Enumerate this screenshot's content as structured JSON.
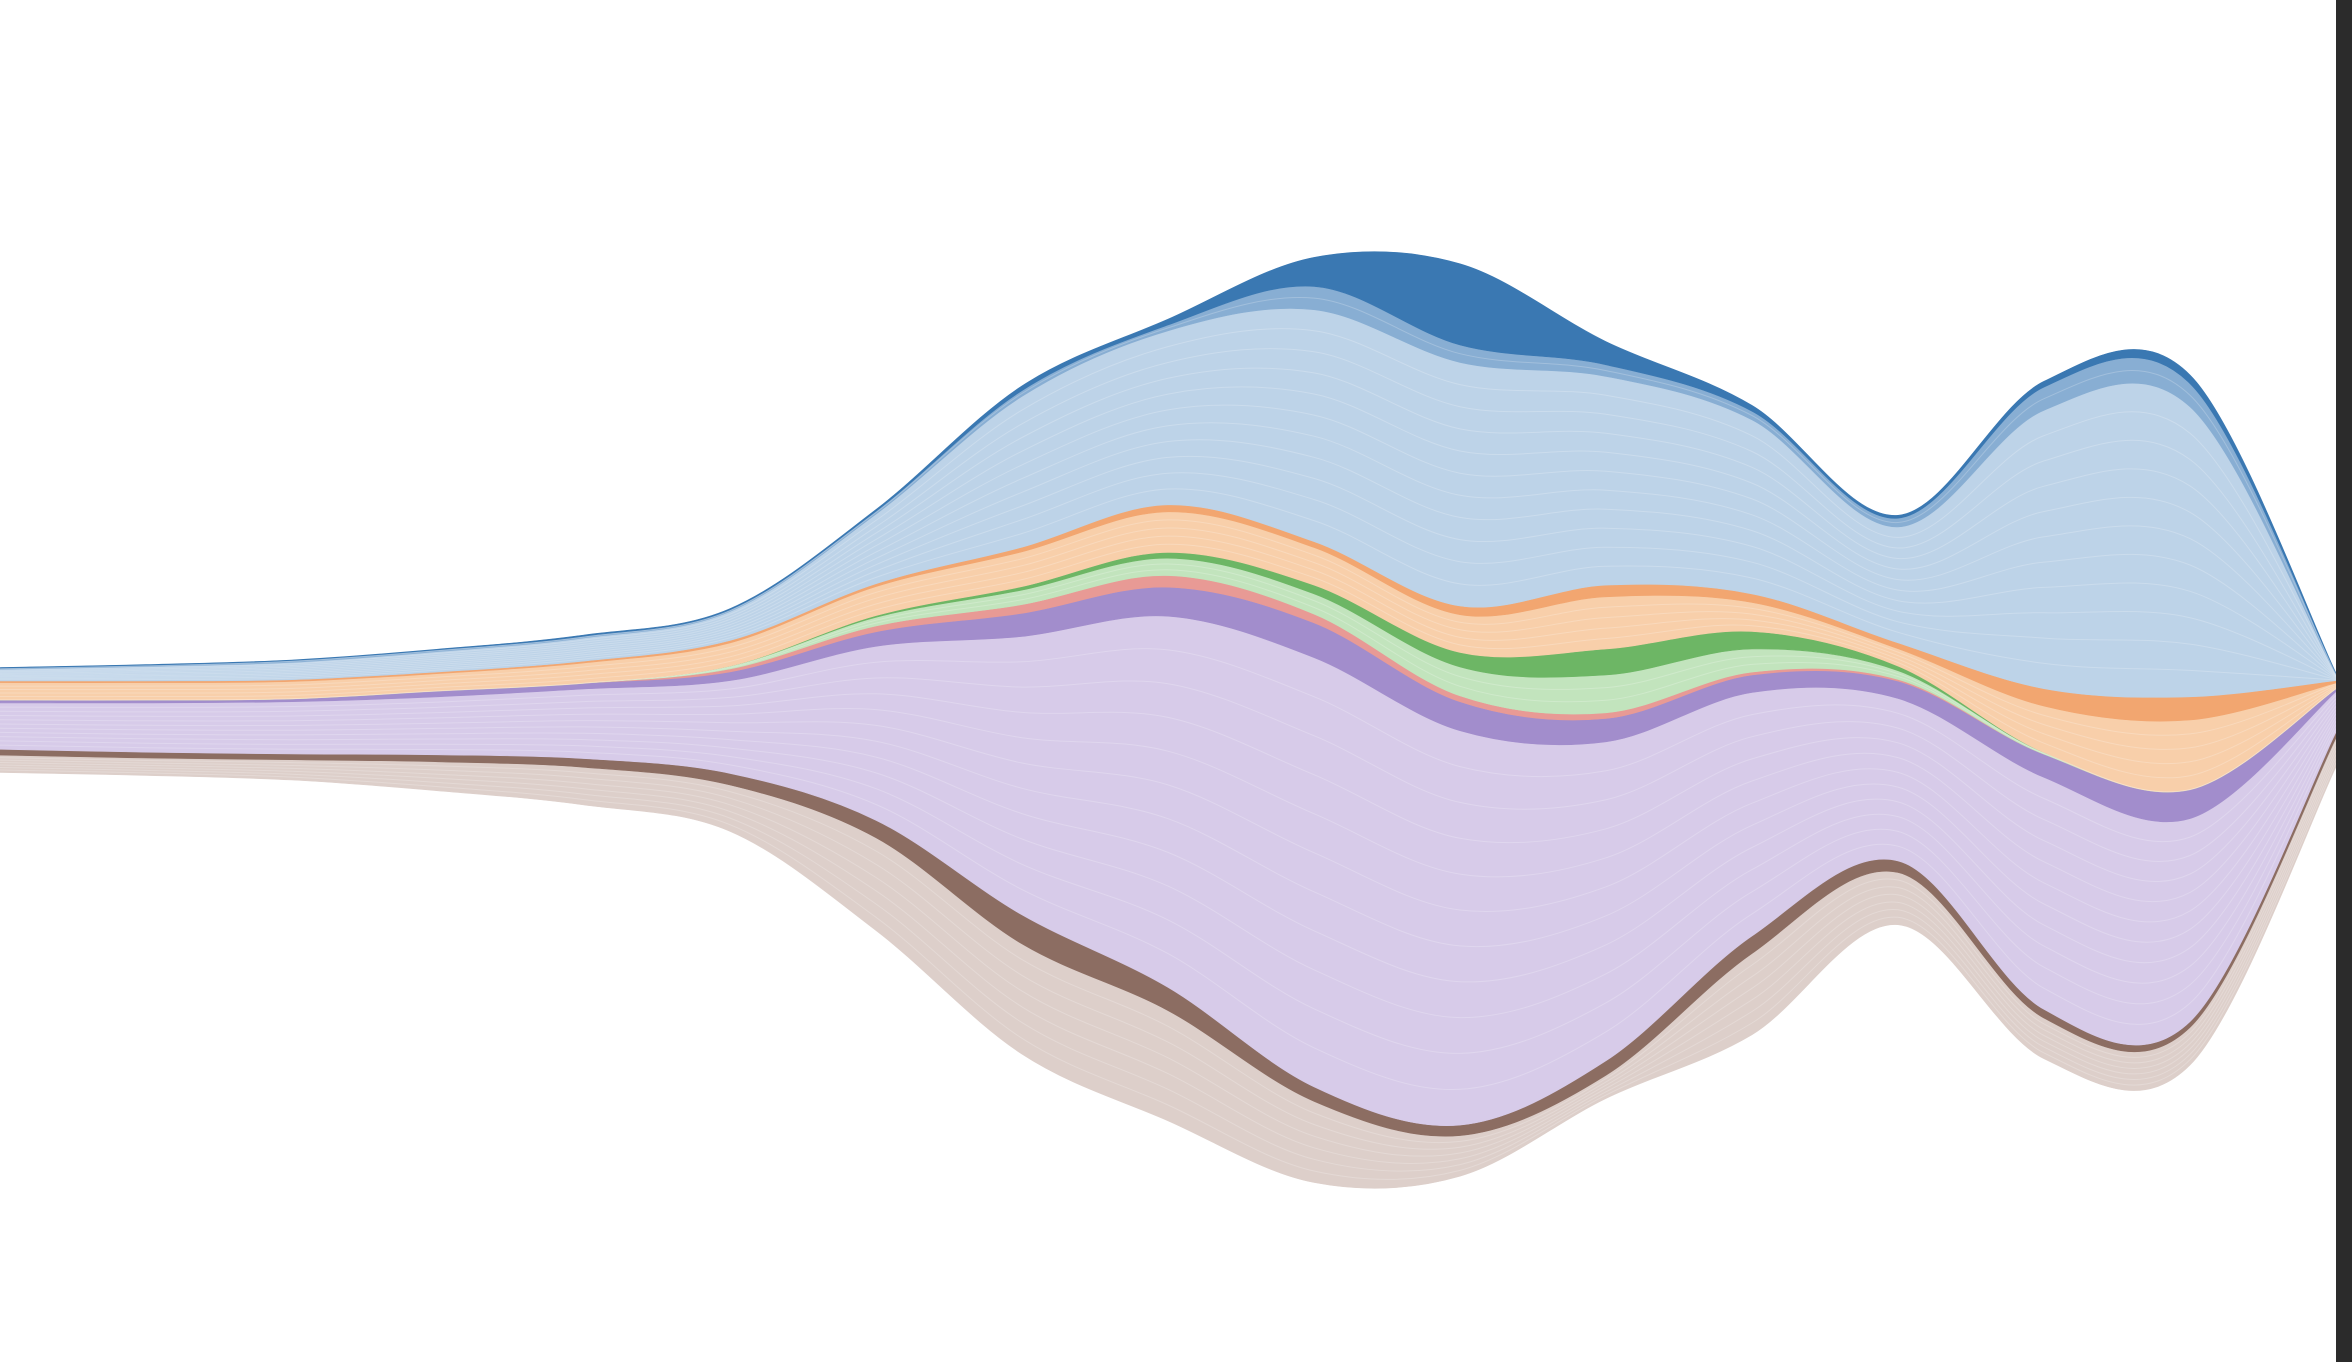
{
  "chart_data": {
    "type": "area",
    "layout": "streamgraph",
    "title": "",
    "xlabel": "",
    "ylabel": "",
    "x": [
      0,
      1,
      2,
      3,
      4,
      5,
      6,
      7,
      8,
      9,
      10,
      11,
      12,
      13,
      14,
      15,
      16
    ],
    "xlim": [
      0,
      16
    ],
    "axes_visible": false,
    "grid": false,
    "legend": "none",
    "series": [
      {
        "color": "#ddcfca",
        "dark": false,
        "values": [
          3,
          3,
          3.5,
          5,
          6.5,
          8,
          16,
          19,
          19,
          14,
          7,
          4,
          14,
          9,
          7,
          6.5,
          5
        ]
      },
      {
        "color": "#8c6d62",
        "dark": true,
        "values": [
          1,
          1,
          1,
          1.2,
          1.5,
          2,
          3,
          5,
          4,
          2.5,
          1.8,
          2.5,
          3,
          2,
          1.5,
          1,
          1
        ]
      },
      {
        "color": "#d7cbe9",
        "dark": false,
        "values": [
          8,
          8.5,
          9,
          10,
          12,
          16,
          30,
          48,
          64,
          74,
          68,
          55,
          42,
          28,
          40,
          35,
          7
        ]
      },
      {
        "color": "#a28dcc",
        "dark": true,
        "values": [
          0.5,
          0.5,
          0.5,
          1,
          1,
          1.5,
          2.5,
          4,
          5,
          6,
          5,
          4,
          3,
          3,
          4,
          5,
          0.5
        ]
      },
      {
        "color": "#e89a95",
        "dark": false,
        "values": [
          0,
          0,
          0,
          0,
          0,
          0.5,
          1,
          1.5,
          2,
          1.5,
          1,
          1,
          0.5,
          0.3,
          0,
          0,
          0
        ]
      },
      {
        "color": "#c2e4bd",
        "dark": false,
        "values": [
          0,
          0,
          0,
          0,
          0,
          0.5,
          1.5,
          2.5,
          3,
          3.5,
          5,
          6.5,
          4,
          1.5,
          0.3,
          0,
          0
        ]
      },
      {
        "color": "#6db665",
        "dark": true,
        "values": [
          0,
          0,
          0,
          0,
          0,
          0,
          0.3,
          0.6,
          1,
          1.5,
          2.5,
          4.5,
          3,
          0.8,
          0,
          0,
          0
        ]
      },
      {
        "color": "#f8cfaa",
        "dark": false,
        "values": [
          3,
          3,
          3,
          3,
          3.5,
          4,
          5,
          6,
          7,
          6.5,
          6.5,
          9,
          5,
          3,
          8,
          12,
          1
        ]
      },
      {
        "color": "#f2a670",
        "dark": true,
        "values": [
          0.3,
          0.3,
          0.3,
          0.3,
          0.3,
          0.4,
          0.5,
          0.8,
          1.2,
          1,
          1.5,
          2,
          1.5,
          1,
          3,
          4,
          0.4
        ]
      },
      {
        "color": "#bdd3e8",
        "dark": false,
        "values": [
          2,
          2.5,
          3,
          3.5,
          4,
          5,
          12,
          26,
          30,
          40,
          42,
          36,
          30,
          20,
          48,
          50,
          1
        ]
      },
      {
        "color": "#88aed3",
        "dark": false,
        "values": [
          0.2,
          0.2,
          0.3,
          0.3,
          0.3,
          0.3,
          0.5,
          1,
          1,
          4,
          3,
          2,
          1.5,
          1.5,
          4,
          4,
          0.2
        ]
      },
      {
        "color": "#3a78b2",
        "dark": true,
        "values": [
          0.1,
          0.1,
          0.1,
          0.1,
          0.2,
          0.2,
          0.3,
          0.8,
          1,
          5,
          14,
          4,
          1,
          0.5,
          1,
          1.5,
          0.1
        ]
      }
    ]
  }
}
